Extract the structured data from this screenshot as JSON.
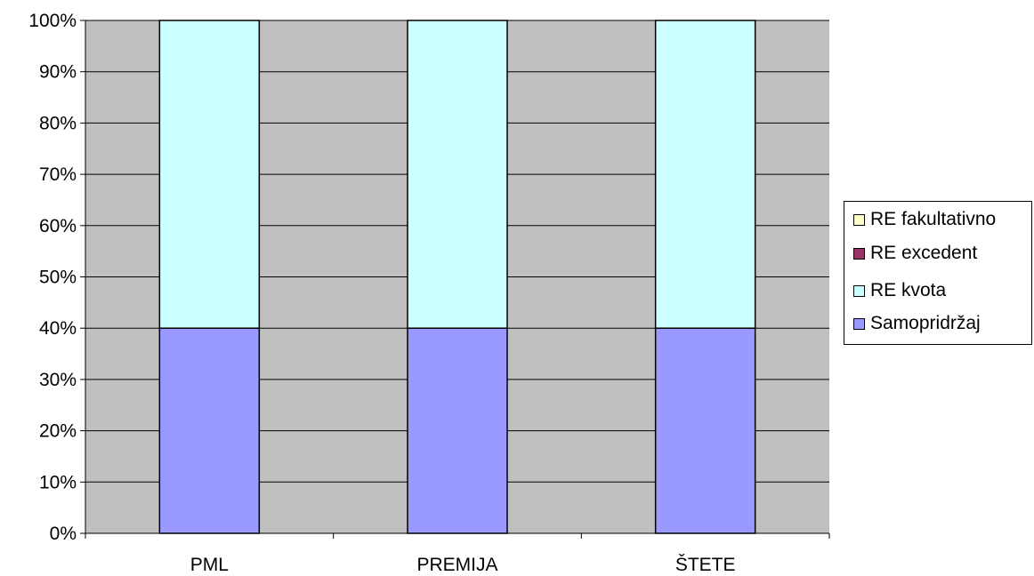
{
  "chart_data": {
    "type": "bar",
    "stacked": "percent",
    "categories": [
      "PML",
      "PREMIJA",
      "ŠTETE"
    ],
    "series": [
      {
        "name": "Samopridržaj",
        "values": [
          40,
          40,
          40
        ],
        "color": "#9999ff"
      },
      {
        "name": "RE kvota",
        "values": [
          60,
          60,
          60
        ],
        "color": "#ccffff"
      },
      {
        "name": "RE excedent",
        "values": [
          0,
          0,
          0
        ],
        "color": "#993366"
      },
      {
        "name": "RE fakultativno",
        "values": [
          0,
          0,
          0
        ],
        "color": "#ffffcc"
      }
    ],
    "legend_order": [
      "RE fakultativno",
      "RE excedent",
      "RE kvota",
      "Samopridržaj"
    ],
    "y_ticks": [
      "0%",
      "10%",
      "20%",
      "30%",
      "40%",
      "50%",
      "60%",
      "70%",
      "80%",
      "90%",
      "100%"
    ],
    "ylim": [
      0,
      100
    ],
    "grid": true,
    "legend_position": "right",
    "plot_background": "#c0c0c0"
  }
}
